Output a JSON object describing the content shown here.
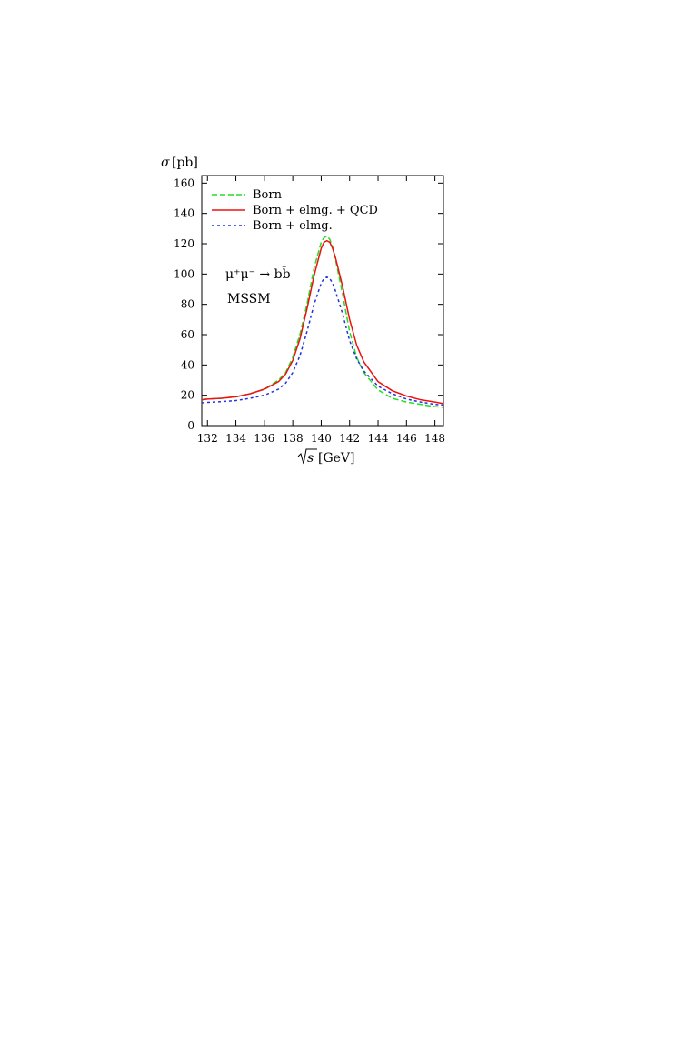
{
  "chart_data": {
    "type": "line",
    "xlabel": "√s [GeV]",
    "xlabel_symbol": "s",
    "xlabel_unit": "[GeV]",
    "ylabel_symbol": "σ",
    "ylabel_unit": "[pb]",
    "xlim": [
      131.6,
      148.6
    ],
    "ylim": [
      0,
      165
    ],
    "x_ticks": [
      132,
      134,
      136,
      138,
      140,
      142,
      144,
      146,
      148
    ],
    "y_ticks": [
      0,
      20,
      40,
      60,
      80,
      100,
      120,
      140,
      160
    ],
    "grid": false,
    "legend_position": "top-left",
    "annotations": {
      "process": "μ⁺μ⁻ → bb̄",
      "model": "MSSM"
    },
    "series": [
      {
        "name": "Born",
        "color": "#22dd22",
        "dash": "dashed",
        "x": [
          131.6,
          132,
          133,
          134,
          135,
          136,
          137,
          137.5,
          138,
          138.5,
          139,
          139.5,
          140,
          140.2,
          140.4,
          140.6,
          140.8,
          141,
          141.5,
          142,
          142.5,
          143,
          144,
          145,
          146,
          147,
          148,
          148.6
        ],
        "y": [
          17,
          17.5,
          18,
          19,
          21,
          24,
          30,
          35,
          45,
          60,
          80,
          104,
          121,
          124,
          125,
          123,
          118,
          110,
          87,
          62,
          45,
          35,
          23.5,
          18,
          15.5,
          14,
          12.5,
          12
        ]
      },
      {
        "name": "Born + elmg. + QCD",
        "color": "#ee1111",
        "dash": "solid",
        "x": [
          131.6,
          132,
          133,
          134,
          135,
          136,
          137,
          137.5,
          138,
          138.5,
          139,
          139.5,
          140,
          140.2,
          140.4,
          140.6,
          140.8,
          141,
          141.5,
          142,
          142.5,
          143,
          144,
          145,
          146,
          147,
          148,
          148.6
        ],
        "y": [
          17,
          17.5,
          18,
          19,
          21,
          24,
          29,
          34,
          43,
          57,
          77,
          99,
          117,
          121,
          122,
          121,
          117,
          111,
          92,
          70,
          53,
          42,
          29,
          23,
          19.5,
          17,
          15.5,
          14.5
        ]
      },
      {
        "name": "Born + elmg.",
        "color": "#2233dd",
        "dash": "dotted",
        "x": [
          131.6,
          132,
          133,
          134,
          135,
          136,
          137,
          137.5,
          138,
          138.5,
          139,
          139.5,
          140,
          140.2,
          140.4,
          140.6,
          140.8,
          141,
          141.5,
          142,
          142.5,
          143,
          144,
          145,
          146,
          147,
          148,
          148.6
        ],
        "y": [
          15,
          15.3,
          15.8,
          16.5,
          18,
          20,
          24,
          28,
          35,
          46,
          62,
          80,
          94,
          97,
          98,
          97,
          94,
          89,
          74,
          56,
          44,
          36,
          26,
          21,
          17.5,
          15.5,
          14,
          13.5
        ]
      }
    ]
  }
}
